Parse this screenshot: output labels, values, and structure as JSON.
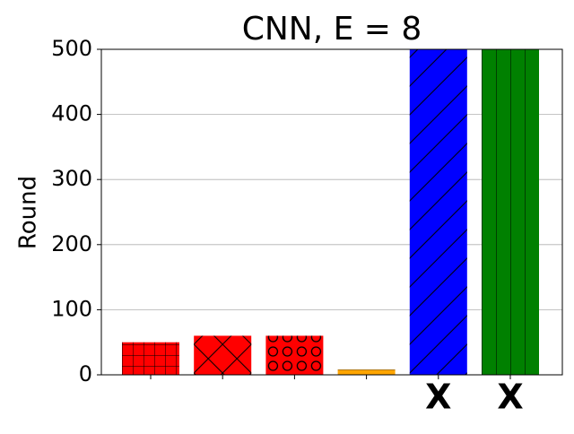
{
  "chart_data": {
    "type": "bar",
    "title": "CNN, E = 8",
    "y_label": "Round",
    "categories": [
      null,
      null,
      null,
      null,
      "X",
      "X"
    ],
    "values": [
      50,
      60,
      60,
      8,
      500,
      500
    ],
    "colors": [
      "#ff0000",
      "#ff0000",
      "#ff0000",
      "#ffa500",
      "#0000ff",
      "#008000"
    ],
    "hatches": [
      "+",
      "x",
      "o",
      "-",
      "/",
      "|"
    ],
    "ylim": [
      0,
      500
    ],
    "yticks": [
      0,
      100,
      200,
      300,
      400,
      500
    ],
    "grid": true
  }
}
